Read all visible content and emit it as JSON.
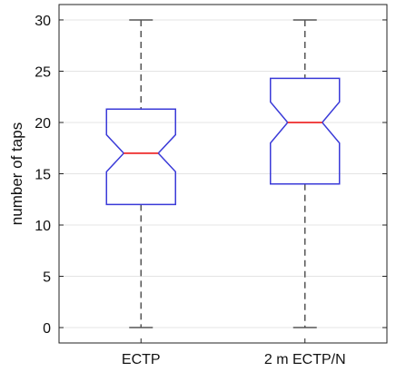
{
  "chart_data": {
    "type": "box",
    "title": "",
    "xlabel": "",
    "ylabel": "number of taps",
    "ylim": [
      -1.5,
      31.5
    ],
    "yticks": [
      0,
      5,
      10,
      15,
      20,
      25,
      30
    ],
    "grid": "horizontal",
    "notched": true,
    "categories": [
      "ECTP",
      "2 m ECTP/N"
    ],
    "boxes": [
      {
        "category": "ECTP",
        "min": 0,
        "q1": 12,
        "median": 17,
        "q3": 21.3,
        "max": 30,
        "notch_low": 15.2,
        "notch_high": 18.8
      },
      {
        "category": "2 m ECTP/N",
        "min": 0,
        "q1": 14,
        "median": 20,
        "q3": 24.3,
        "max": 30,
        "notch_low": 18,
        "notch_high": 22
      }
    ],
    "colors": {
      "box": "#3a3ad8",
      "median": "#ee2a2a",
      "whisker": "#555555",
      "grid": "#e4e4e4",
      "axis": "#222222"
    }
  }
}
